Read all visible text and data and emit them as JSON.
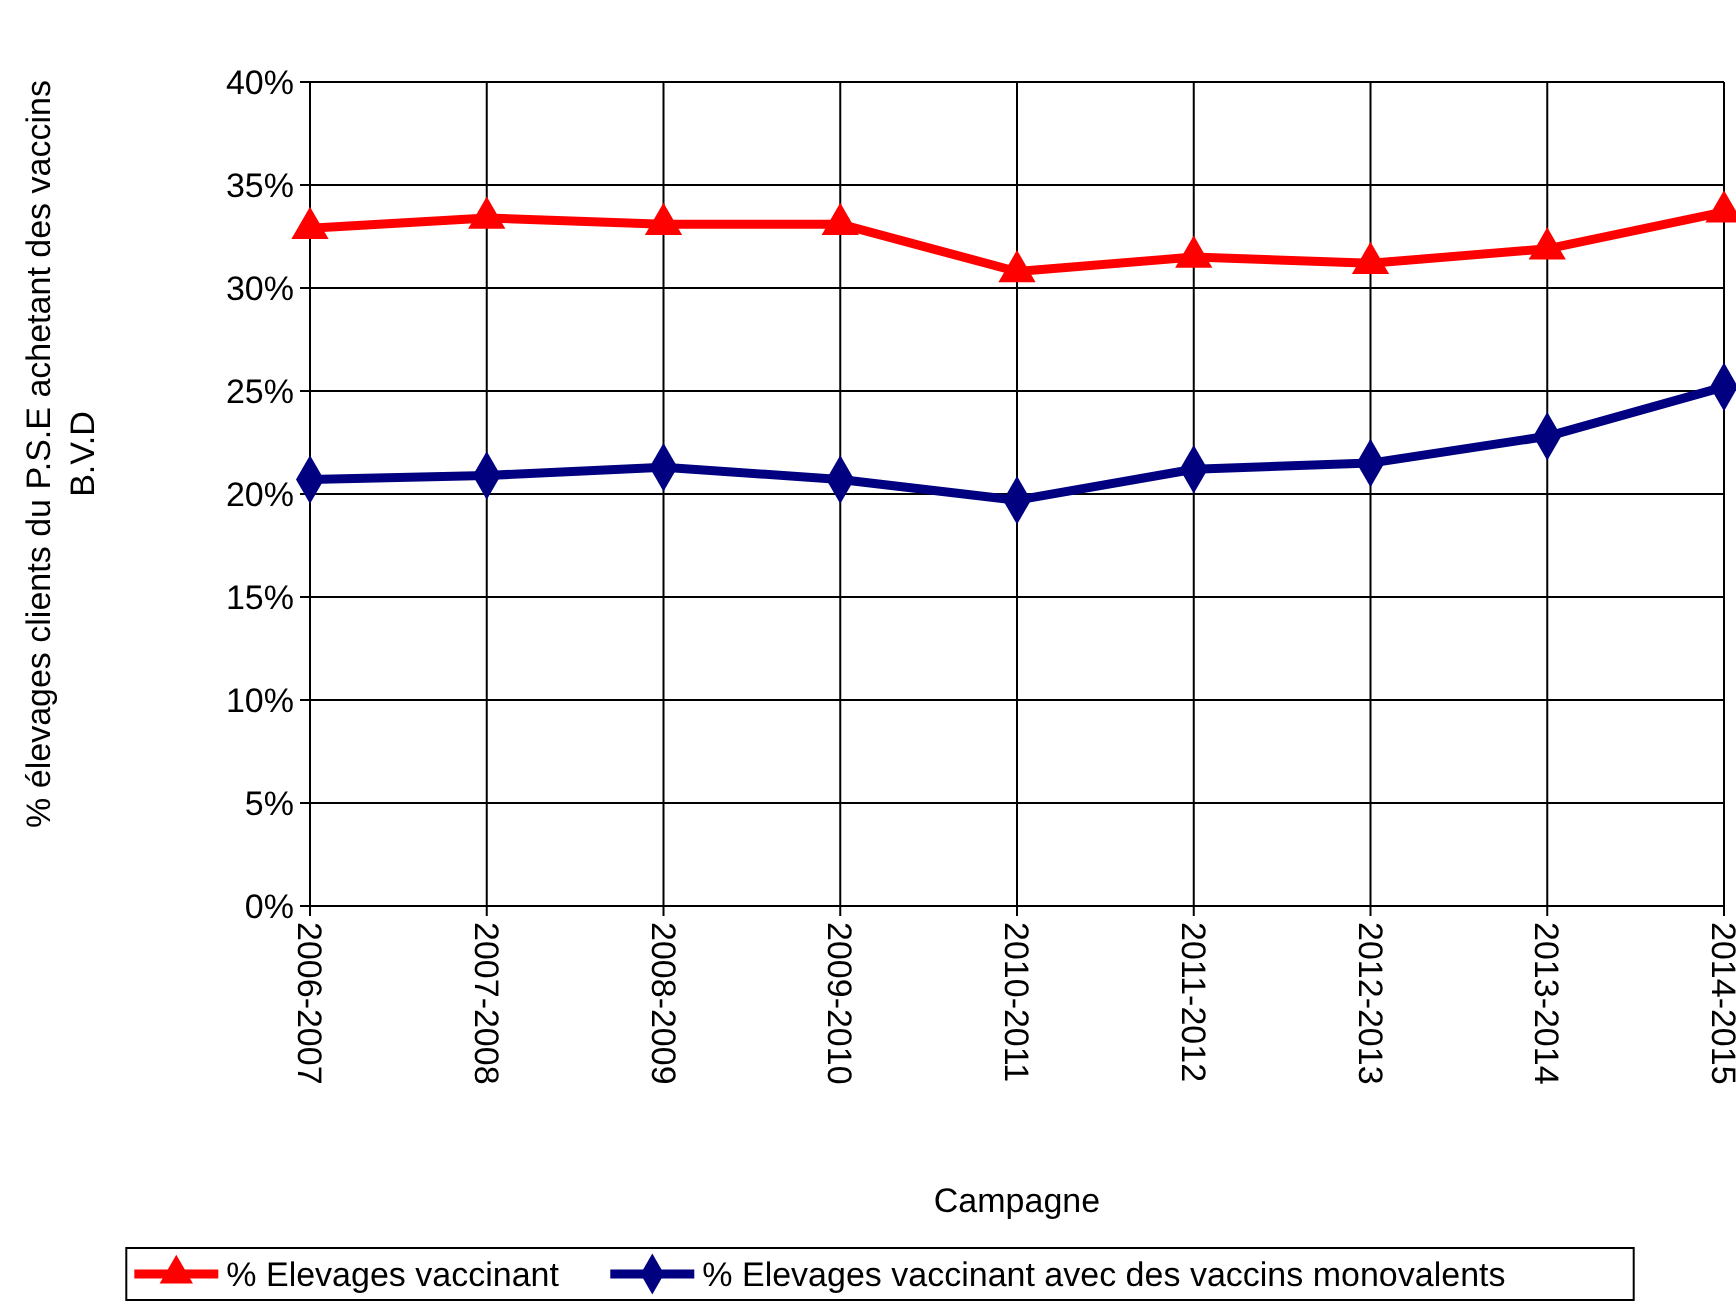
{
  "chart_data": {
    "type": "line",
    "xlabel": "Campagne",
    "ylabel": "% élevages clients du P.S.E achetant des vaccins B.V.D",
    "categories": [
      "2006-2007",
      "2007-2008",
      "2008-2009",
      "2009-2010",
      "2010-2011",
      "2011-2012",
      "2012-2013",
      "2013-2014",
      "2014-2015"
    ],
    "series": [
      {
        "name": "% Elevages vaccinant",
        "color": "#ff0000",
        "marker": "triangle",
        "values": [
          32.9,
          33.4,
          33.1,
          33.1,
          30.8,
          31.5,
          31.2,
          31.9,
          33.7
        ]
      },
      {
        "name": "% Elevages vaccinant avec des vaccins monovalents",
        "color": "#000080",
        "marker": "diamond",
        "values": [
          20.7,
          20.9,
          21.3,
          20.7,
          19.7,
          21.2,
          21.5,
          22.8,
          25.2
        ]
      }
    ],
    "ylim": [
      0,
      40
    ],
    "yticks": [
      {
        "value": 0,
        "label": "0%"
      },
      {
        "value": 5,
        "label": "5%"
      },
      {
        "value": 10,
        "label": "10%"
      },
      {
        "value": 15,
        "label": "15%"
      },
      {
        "value": 20,
        "label": "20%"
      },
      {
        "value": 25,
        "label": "25%"
      },
      {
        "value": 30,
        "label": "30%"
      },
      {
        "value": 35,
        "label": "35%"
      },
      {
        "value": 40,
        "label": "40%"
      }
    ],
    "grid": true,
    "legend": "bottom",
    "line_style": "solid"
  }
}
